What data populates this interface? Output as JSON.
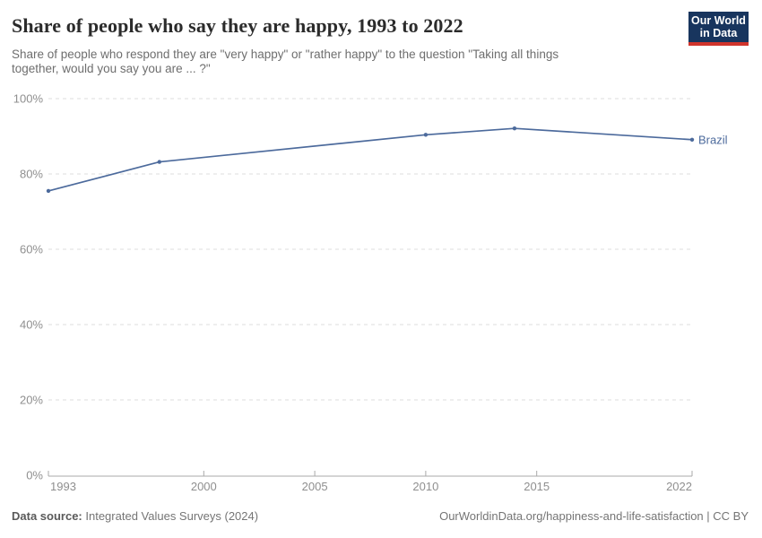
{
  "header": {
    "title": "Share of people who say they are happy, 1993 to 2022",
    "subtitle_lines": [
      "Share of people who respond they are \"very happy\" or \"rather happy\" to the question \"Taking all things",
      "together, would you say you are ... ?\""
    ],
    "logo": {
      "line1": "Our World",
      "line2": "in Data"
    }
  },
  "chart_data": {
    "type": "line",
    "title": "Share of people who say they are happy, 1993 to 2022",
    "xlabel": "",
    "ylabel": "",
    "xlim": [
      1993,
      2022
    ],
    "ylim": [
      0,
      100
    ],
    "xticks": [
      1993,
      2000,
      2005,
      2010,
      2015,
      2022
    ],
    "yticks": [
      0,
      20,
      40,
      60,
      80,
      100
    ],
    "ytick_suffix": "%",
    "grid": "horizontal-dashed",
    "legend_position": "end-of-line-label",
    "series": [
      {
        "name": "Brazil",
        "x": [
          1993,
          1998,
          2010,
          2014,
          2022
        ],
        "values": [
          75.5,
          83.2,
          90.4,
          92.1,
          89.1
        ],
        "color": "#4C6A9C"
      }
    ]
  },
  "footer": {
    "source_label": "Data source:",
    "source_value": "Integrated Values Surveys (2024)",
    "attribution": "OurWorldinData.org/happiness-and-life-satisfaction | CC BY"
  },
  "colors": {
    "line": "#4C6A9C",
    "grid": "#dcdcdc",
    "axis": "#a9a9a9",
    "tick_text": "#8f8f8f",
    "logo_bg": "#18355e",
    "logo_accent": "#d0342c"
  }
}
